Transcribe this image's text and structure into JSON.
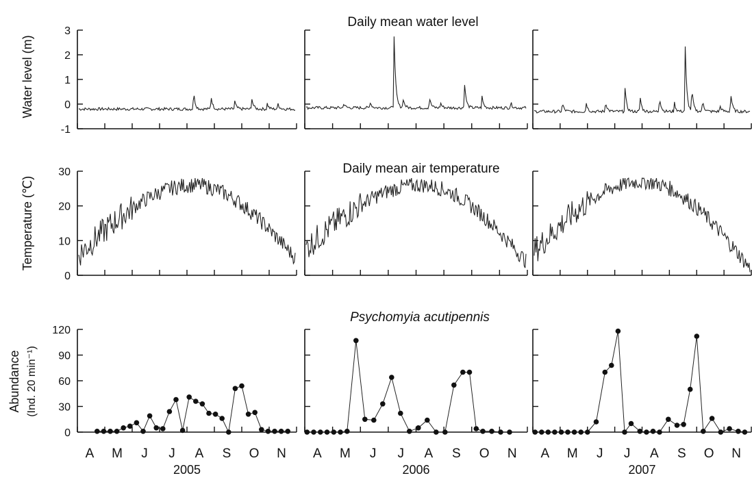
{
  "chart_data": [
    {
      "type": "line",
      "title": "Daily mean water level",
      "ylabel": "Water level (m)",
      "ylim": [
        -1,
        3
      ],
      "yticks": [
        "-1",
        "0",
        "1",
        "2",
        "3"
      ],
      "x_range": [
        "2005-04-01",
        "2005-11-30",
        "2006-04-01",
        "2006-11-30",
        "2007-04-01",
        "2007-11-30"
      ],
      "series": [
        {
          "year": "2005",
          "peaks": [
            [
              0.53,
              0.6
            ],
            [
              0.61,
              0.45
            ],
            [
              0.72,
              0.15
            ],
            [
              0.8,
              0.25
            ],
            [
              0.87,
              0.05
            ],
            [
              0.92,
              0.05
            ]
          ],
          "base": -0.2
        },
        {
          "year": "2006",
          "peaks": [
            [
              0.17,
              0.05
            ],
            [
              0.29,
              0.15
            ],
            [
              0.4,
              2.8
            ],
            [
              0.44,
              0.3
            ],
            [
              0.56,
              0.35
            ],
            [
              0.61,
              0.1
            ],
            [
              0.72,
              0.95
            ],
            [
              0.8,
              0.3
            ],
            [
              0.93,
              0.1
            ]
          ],
          "base": -0.15
        },
        {
          "year": "2007",
          "peaks": [
            [
              0.13,
              0.1
            ],
            [
              0.24,
              0.15
            ],
            [
              0.33,
              0.2
            ],
            [
              0.42,
              0.75
            ],
            [
              0.49,
              0.4
            ],
            [
              0.58,
              0.4
            ],
            [
              0.65,
              0.05
            ],
            [
              0.7,
              2.3
            ],
            [
              0.73,
              0.75
            ],
            [
              0.78,
              0.25
            ],
            [
              0.86,
              0.0
            ],
            [
              0.91,
              0.6
            ]
          ],
          "base": -0.3
        }
      ]
    },
    {
      "type": "line",
      "title": "Daily mean air temperature",
      "ylabel": "Temperature (℃)",
      "ylim": [
        0,
        30
      ],
      "yticks": [
        "0",
        "10",
        "20",
        "30"
      ],
      "series": [
        {
          "year": "2005",
          "start": 6,
          "peak": 26,
          "peak_pos": 0.53,
          "end": 5
        },
        {
          "year": "2006",
          "start": 8,
          "peak": 26,
          "peak_pos": 0.52,
          "end": 4
        },
        {
          "year": "2007",
          "start": 7,
          "peak": 27,
          "peak_pos": 0.5,
          "end": 2
        }
      ]
    },
    {
      "type": "scatter",
      "title": "Psychomyia acutipennis",
      "ylabel": "Abundance",
      "ylabel_unit": "(Ind. 20 min⁻¹)",
      "ylim": [
        0,
        120
      ],
      "yticks": [
        "0",
        "30",
        "60",
        "90",
        "120"
      ],
      "series": [
        {
          "year": "2005",
          "x": [
            0.09,
            0.12,
            0.15,
            0.18,
            0.21,
            0.24,
            0.27,
            0.3,
            0.33,
            0.36,
            0.39,
            0.42,
            0.45,
            0.48,
            0.51,
            0.54,
            0.57,
            0.6,
            0.63,
            0.66,
            0.69,
            0.72,
            0.75,
            0.78,
            0.81,
            0.84,
            0.87,
            0.9,
            0.93,
            0.96
          ],
          "values": [
            1,
            1,
            1,
            1,
            5,
            7,
            11,
            1,
            19,
            5,
            4,
            24,
            38,
            2,
            41,
            36,
            33,
            22,
            21,
            16,
            0,
            51,
            54,
            21,
            23,
            3,
            1,
            1,
            1,
            1
          ]
        },
        {
          "year": "2006",
          "x": [
            0.01,
            0.04,
            0.07,
            0.1,
            0.13,
            0.16,
            0.19,
            0.23,
            0.27,
            0.31,
            0.35,
            0.39,
            0.43,
            0.47,
            0.51,
            0.55,
            0.59,
            0.63,
            0.67,
            0.71,
            0.74,
            0.77,
            0.8,
            0.84,
            0.88,
            0.92
          ],
          "values": [
            0,
            0,
            0,
            0,
            0,
            0,
            1,
            107,
            15,
            14,
            33,
            64,
            22,
            1,
            5,
            14,
            0,
            0,
            55,
            70,
            70,
            4,
            1,
            1,
            0,
            0
          ]
        },
        {
          "year": "2007",
          "x": [
            0.01,
            0.04,
            0.07,
            0.1,
            0.13,
            0.16,
            0.19,
            0.22,
            0.25,
            0.29,
            0.33,
            0.36,
            0.39,
            0.42,
            0.45,
            0.49,
            0.52,
            0.55,
            0.58,
            0.62,
            0.66,
            0.69,
            0.72,
            0.75,
            0.78,
            0.82,
            0.86,
            0.9,
            0.94,
            0.97
          ],
          "values": [
            0,
            0,
            0,
            0,
            0,
            0,
            0,
            0,
            0,
            12,
            70,
            78,
            118,
            0,
            10,
            1,
            0,
            1,
            0,
            15,
            8,
            9,
            50,
            112,
            1,
            16,
            0,
            4,
            1,
            0
          ]
        }
      ]
    }
  ],
  "x_axis": {
    "months": [
      "A",
      "M",
      "J",
      "J",
      "A",
      "S",
      "O",
      "N"
    ],
    "years": [
      "2005",
      "2006",
      "2007"
    ]
  }
}
